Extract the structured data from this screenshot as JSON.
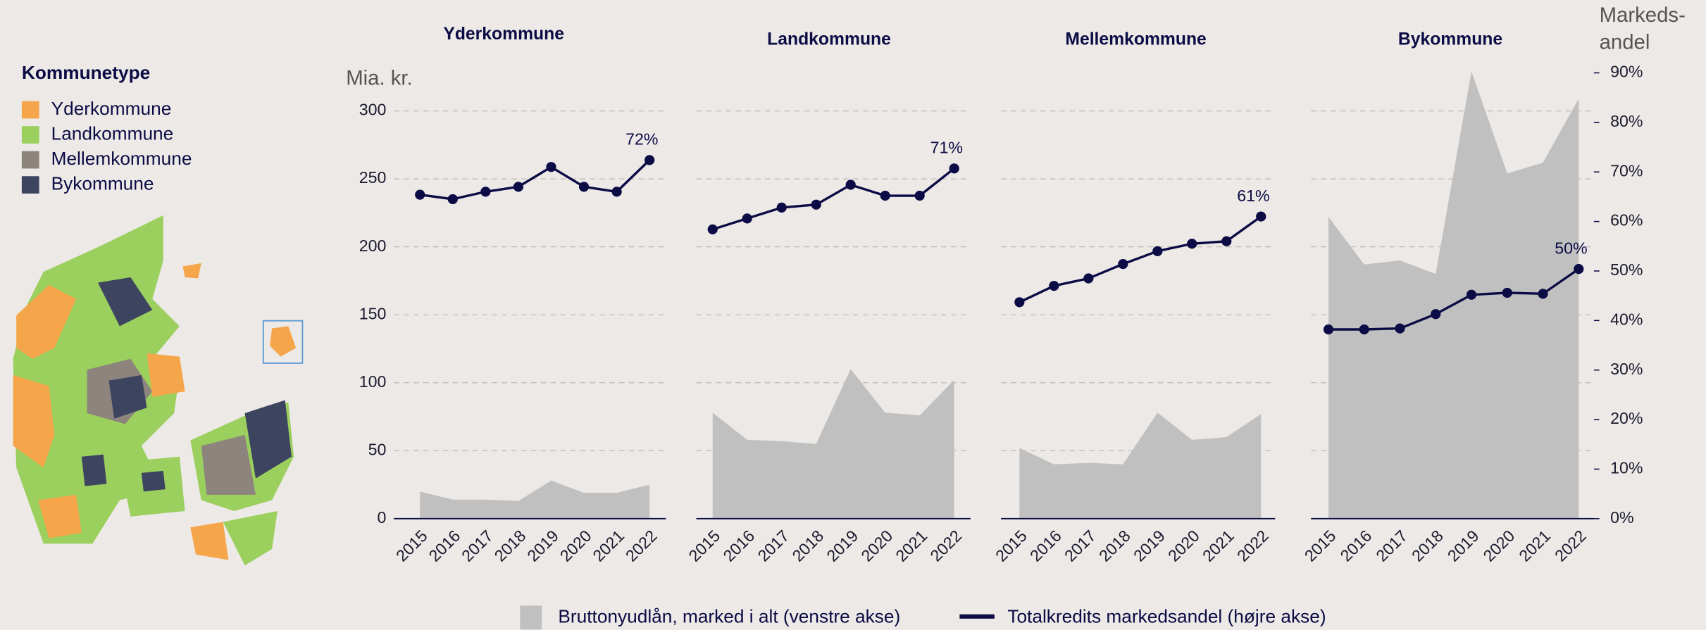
{
  "chart_data": {
    "type": "small_multiples",
    "y_label": "Mia. kr.",
    "ylim": [
      0,
      328
    ],
    "yticks": [
      0,
      50,
      100,
      150,
      200,
      250,
      300
    ],
    "y2_label": [
      "Markeds-",
      "andel"
    ],
    "y2lim": [
      0,
      90
    ],
    "y2ticks": [
      {
        "value": 0,
        "label": "0%"
      },
      {
        "value": 10,
        "label": "10%"
      },
      {
        "value": 20,
        "label": "20%"
      },
      {
        "value": 30,
        "label": "30%"
      },
      {
        "value": 40,
        "label": "40%"
      },
      {
        "value": 50,
        "label": "50%"
      },
      {
        "value": 60,
        "label": "60%"
      },
      {
        "value": 70,
        "label": "70%"
      },
      {
        "value": 80,
        "label": "80%"
      },
      {
        "value": 90,
        "label": "90%"
      }
    ],
    "grid": true,
    "categories": [
      "2015",
      "2016",
      "2017",
      "2018",
      "2019",
      "2020",
      "2021",
      "2022"
    ],
    "legend": [
      {
        "name": "Bruttonyudlån, marked i alt (venstre akse)",
        "color": "#c0c0c0"
      },
      {
        "name": "Totalkredits markedsandel (højre akse)",
        "color": "#0b0b45"
      }
    ],
    "panels": [
      {
        "title": "Yderkommune",
        "series": [
          {
            "type": "area",
            "values": [
              20,
              14,
              14,
              13,
              28,
              19,
              19,
              25
            ]
          },
          {
            "type": "line",
            "axis": "y2",
            "values": [
              65.4,
              64.5,
              66,
              67,
              71,
              67,
              66,
              72.4
            ],
            "value_labels": [
              null,
              null,
              null,
              null,
              null,
              null,
              null,
              "72%"
            ]
          }
        ]
      },
      {
        "title": "Landkommune",
        "series": [
          {
            "type": "area",
            "values": [
              78,
              58,
              57,
              55,
              110,
              78,
              76,
              102
            ]
          },
          {
            "type": "line",
            "axis": "y2",
            "values": [
              58.4,
              60.6,
              62.8,
              63.4,
              67.4,
              65.2,
              65.2,
              70.7
            ],
            "value_labels": [
              null,
              null,
              null,
              null,
              null,
              null,
              null,
              "71%"
            ]
          }
        ]
      },
      {
        "title": "Mellemkommune",
        "series": [
          {
            "type": "area",
            "values": [
              52,
              40,
              41,
              40,
              78,
              58,
              60,
              77
            ]
          },
          {
            "type": "line",
            "axis": "y2",
            "values": [
              43.7,
              47,
              48.5,
              51.4,
              54,
              55.5,
              56,
              61
            ],
            "value_labels": [
              null,
              null,
              null,
              null,
              null,
              null,
              null,
              "61%"
            ]
          }
        ]
      },
      {
        "title": "Bykommune",
        "series": [
          {
            "type": "area",
            "values": [
              222,
              187,
              190,
              180,
              329,
              254,
              262,
              309
            ]
          },
          {
            "type": "line",
            "axis": "y2",
            "values": [
              38.2,
              38.2,
              38.4,
              41.3,
              45.2,
              45.6,
              45.4,
              50.4
            ],
            "value_labels": [
              null,
              null,
              null,
              null,
              null,
              null,
              null,
              "50%"
            ]
          }
        ]
      }
    ],
    "map_legend": {
      "title": "Kommunetype",
      "items": [
        {
          "name": "Yderkommune",
          "color": "#f5a54a"
        },
        {
          "name": "Landkommune",
          "color": "#9bcf5e"
        },
        {
          "name": "Mellemkommune",
          "color": "#8d857d"
        },
        {
          "name": "Bykommune",
          "color": "#3d4460"
        }
      ]
    }
  }
}
